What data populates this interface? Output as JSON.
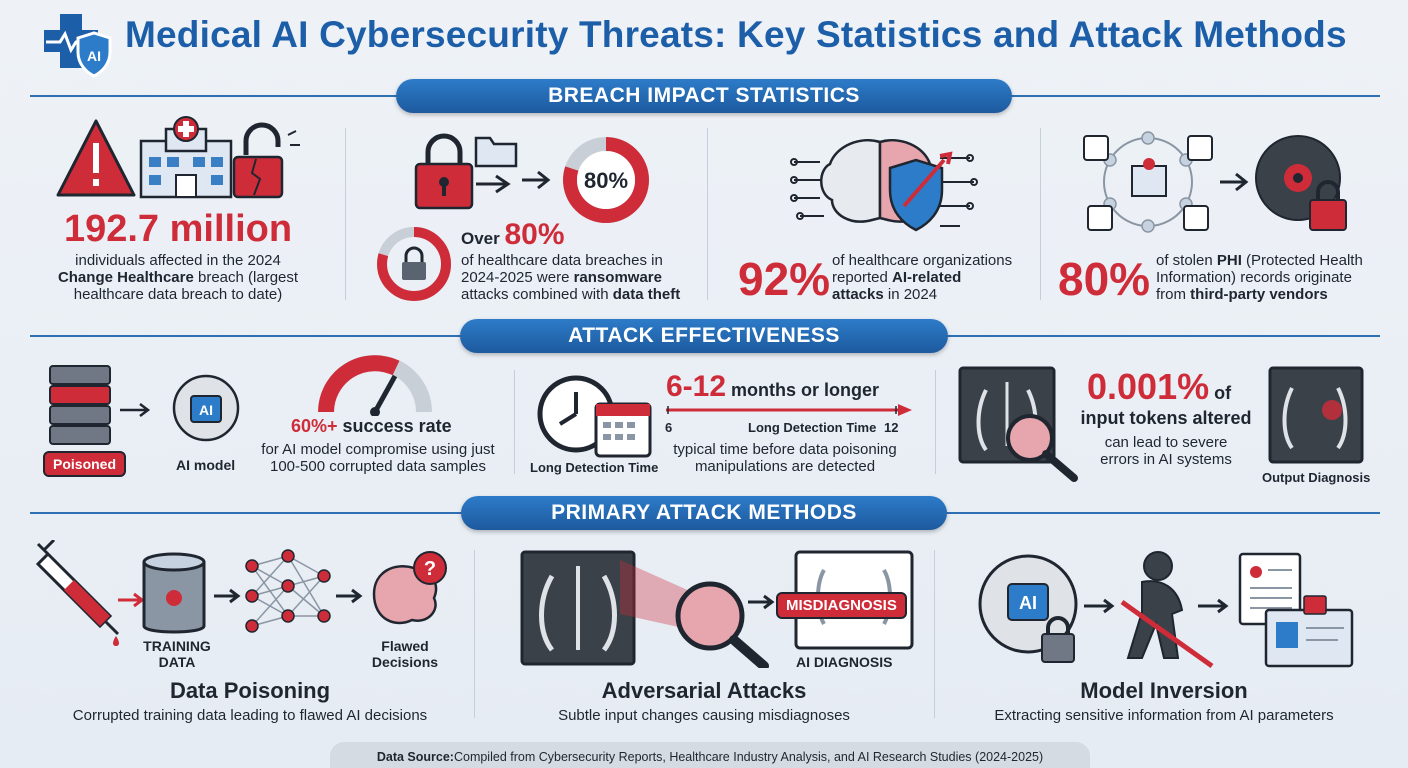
{
  "header": {
    "title": "Medical AI Cybersecurity Threats: Key Statistics and Attack Methods",
    "logo_text": "AI"
  },
  "sections": {
    "breach": "BREACH IMPACT STATISTICS",
    "effectiveness": "ATTACK EFFECTIVENESS",
    "methods": "PRIMARY ATTACK METHODS"
  },
  "breach": {
    "stat1": {
      "value": "192.7 million",
      "line1": "individuals affected in the 2024",
      "line2_bold": "Change Healthcare",
      "line2_rest": " breach (largest",
      "line3": "healthcare data breach to date)"
    },
    "stat2": {
      "donut": "80%",
      "prefix": "Over ",
      "value": "80%",
      "line1": "of healthcare data breaches in",
      "line2_a": "2024-2025 were ",
      "line2_bold": "ransomware",
      "line3_a": "attacks combined with ",
      "line3_bold": "data theft"
    },
    "stat3": {
      "value": "92%",
      "line1": "of healthcare organizations",
      "line2_a": "reported ",
      "line2_bold": "AI-related",
      "line3_bold": "attacks",
      "line3_rest": " in 2024"
    },
    "stat4": {
      "value": "80%",
      "line1_a": "of stolen ",
      "line1_bold": "PHI",
      "line1_rest": " (Protected Health",
      "line2": "Information) records originate",
      "line3_a": "from ",
      "line3_bold": "third-party vendors"
    }
  },
  "effectiveness": {
    "poison": {
      "badge": "Poisoned",
      "model_label": "AI model",
      "chip": "AI",
      "value": "60%+",
      "value_suffix": " success rate",
      "line1": "for AI model compromise using just",
      "line2": "100-500 corrupted data samples"
    },
    "detection": {
      "clock_label": "Long Detection Time",
      "value": "6-12",
      "value_suffix": " months or longer",
      "axis_start": "6",
      "axis_mid": "Long Detection Time",
      "axis_end": "12",
      "line1": "typical time before data poisoning",
      "line2": "manipulations are detected"
    },
    "tokens": {
      "value": "0.001%",
      "value_suffix": " of",
      "line1": "input tokens altered",
      "line2": "can lead to severe",
      "line3": "errors in AI systems",
      "output_label": "Output Diagnosis"
    }
  },
  "methods": {
    "poisoning": {
      "label_training": "TRAINING\nDATA",
      "label_training_1": "TRAINING",
      "label_training_2": "DATA",
      "label_flawed_1": "Flawed",
      "label_flawed_2": "Decisions",
      "title": "Data Poisoning",
      "desc": "Corrupted training data leading to flawed AI decisions"
    },
    "adversarial": {
      "misdiagnosis": "MISDIAGNOSIS",
      "ai_diagnosis": "AI DIAGNOSIS",
      "title": "Adversarial Attacks",
      "desc": "Subtle input changes causing misdiagnoses"
    },
    "inversion": {
      "chip": "AI",
      "title": "Model Inversion",
      "desc": "Extracting sensitive information from AI parameters"
    }
  },
  "footer": {
    "label": "Data Source:",
    "text": " Compiled from Cybersecurity Reports, Healthcare Industry Analysis, and AI Research Studies (2024-2025)"
  },
  "colors": {
    "brand_blue": "#1c5ea8",
    "accent_red": "#cf2c3a",
    "dark": "#1f2630"
  }
}
